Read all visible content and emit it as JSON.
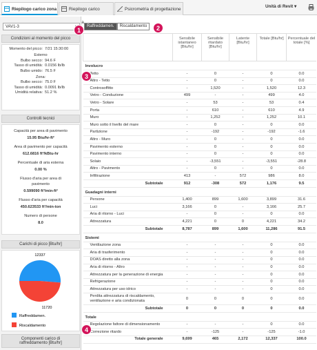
{
  "tabs": [
    "Riepilogo carico zona",
    "Riepilogo carico sistema",
    "Psicrometria di progettazione"
  ],
  "units": "Unità di Revit",
  "zone_select": "VAV1-3",
  "callouts": [
    "1",
    "2",
    "3",
    "4"
  ],
  "peak_conditions": {
    "title": "Condizioni al momento del picco",
    "rows": [
      {
        "label": "Momento del picco:",
        "value": "7/21 15:30:00"
      },
      {
        "label": "Esterno"
      },
      {
        "label": "Bulbo secco:",
        "value": "94.6 F"
      },
      {
        "label": "Tasso di umidità:",
        "value": "0.0156 lb/lb"
      },
      {
        "label": "Bulbo umido:",
        "value": "76.5 F"
      },
      {
        "label": "Zona:"
      },
      {
        "label": "Bulbo secco:",
        "value": "75.0 F"
      },
      {
        "label": "Tasso di umidità:",
        "value": "0.0091 lb/lb"
      },
      {
        "label": "Umidità relativa:",
        "value": "51.2 %"
      }
    ]
  },
  "technical_checks": {
    "title": "Controlli tecnici",
    "items": [
      {
        "label": "Capacità per area di pavimento",
        "value": "15.95 Btu/hr-ft²"
      },
      {
        "label": "Area di pavimento per capacità",
        "value": "612.6816 ft²/kBtu-hr"
      },
      {
        "label": "Percentuale di aria esterna",
        "value": "0.00 %"
      },
      {
        "label": "Flusso d'aria per area di pavimento",
        "value": "0.599090 ft³/min-ft²"
      },
      {
        "label": "Flusso d'aria per capacità",
        "value": "450.623533 ft³/min-ton"
      },
      {
        "label": "Numero di persone",
        "value": "8.0"
      }
    ]
  },
  "pie": {
    "title": "Carichi di picco [Btu/hr]",
    "names": [
      "Raffreddamen.",
      "Riscaldamento"
    ],
    "values": [
      12337,
      11720
    ],
    "colors": [
      "#2196f3",
      "#f44336"
    ]
  },
  "components_title": "Componenti carico di raffreddamento [Btu/hr]",
  "toggle": [
    "Raffreddamen.",
    "Riscaldamento"
  ],
  "table": {
    "columns": [
      "Sensibile istantaneo [Btu/hr]",
      "Sensibile ritardato [Btu/hr]",
      "Latente [Btu/hr]",
      "Totale [Btu/hr]",
      "Percentuale del totale [%]"
    ],
    "sections": [
      {
        "title": "Involucro",
        "rows": [
          [
            "Tetto",
            "-",
            "0",
            "-",
            "0",
            "0.0"
          ],
          [
            "Altro - Tetto",
            "-",
            "0",
            "-",
            "0",
            "0.0"
          ],
          [
            "Controsoffitto",
            "-",
            "1,520",
            "-",
            "1,520",
            "12.3"
          ],
          [
            "Vetro - Conduzione",
            "499",
            "-",
            "-",
            "499",
            "4.0"
          ],
          [
            "Vetro - Solare",
            "-",
            "53",
            "-",
            "53",
            "0.4"
          ],
          [
            "Porta",
            "-",
            "610",
            "-",
            "610",
            "4.9"
          ],
          [
            "Muro",
            "-",
            "1,252",
            "-",
            "1,252",
            "10.1"
          ],
          [
            "Muro sotto il livello del mare",
            "-",
            "0",
            "-",
            "0",
            "0.0"
          ],
          [
            "Partizione",
            "-",
            "-192",
            "-",
            "-192",
            "-1.6"
          ],
          [
            "Altro - Muro",
            "-",
            "0",
            "-",
            "0",
            "0.0"
          ],
          [
            "Pavimento esterno",
            "-",
            "0",
            "-",
            "0",
            "0.0"
          ],
          [
            "Pavimento interno",
            "-",
            "0",
            "-",
            "0",
            "0.0"
          ],
          [
            "Solaio",
            "-",
            "-3,551",
            "-",
            "-3,551",
            "-28.8"
          ],
          [
            "Altro - Pavimento",
            "-",
            "0",
            "-",
            "0",
            "0.0"
          ],
          [
            "Infiltrazione",
            "413",
            "-",
            "572",
            "986",
            "8.0"
          ]
        ],
        "subtotal": [
          "Subtotale",
          "912",
          "-308",
          "572",
          "1,176",
          "9.5"
        ]
      },
      {
        "title": "Guadagni interni",
        "rows": [
          [
            "Persone",
            "1,400",
            "899",
            "1,600",
            "3,899",
            "31.6"
          ],
          [
            "Luci",
            "3,166",
            "0",
            "-",
            "3,166",
            "25.7"
          ],
          [
            "Aria di ritorno - Luci",
            "-",
            "0",
            "-",
            "0",
            "0.0"
          ],
          [
            "Attrezzatura",
            "4,221",
            "0",
            "0",
            "4,221",
            "34.2"
          ]
        ],
        "subtotal": [
          "Subtotale",
          "8,787",
          "899",
          "1,600",
          "11,286",
          "91.5"
        ]
      },
      {
        "title": "Sistemi",
        "rows": [
          [
            "Ventilazione zona",
            "-",
            "-",
            "-",
            "0",
            "0.0"
          ],
          [
            "Aria di trasferimento",
            "-",
            "-",
            "-",
            "0",
            "0.0"
          ],
          [
            "DOAS diretto alla zona",
            "-",
            "-",
            "-",
            "0",
            "0.0"
          ],
          [
            "Aria di ritorno - Altro",
            "-",
            "-",
            "-",
            "0",
            "0.0"
          ],
          [
            "Attrezzatura per la generazione di energia",
            "-",
            "-",
            "-",
            "0",
            "0.0"
          ],
          [
            "Refrigerazione",
            "-",
            "-",
            "-",
            "0",
            "0.0"
          ],
          [
            "Attrezzatura per uso idrico",
            "-",
            "-",
            "-",
            "0",
            "0.0"
          ],
          [
            "Perdita attrezzatura di riscaldamento, ventilazione e aria condizionata",
            "0",
            "0",
            "0",
            "0",
            "0.0"
          ]
        ],
        "subtotal": [
          "Subtotale",
          "0",
          "0",
          "0",
          "0",
          "0.0"
        ]
      },
      {
        "title": "Totale",
        "rows": [
          [
            "Regolazione fattore di dimensionamento",
            "-",
            "-",
            "-",
            "0",
            "0.0"
          ],
          [
            "Correzione ritardo",
            "-",
            "-125",
            "-",
            "-125",
            "-1.0"
          ]
        ],
        "subtotal": [
          "Totale generale",
          "9,699",
          "465",
          "2,172",
          "12,337",
          "100.0"
        ]
      }
    ]
  }
}
